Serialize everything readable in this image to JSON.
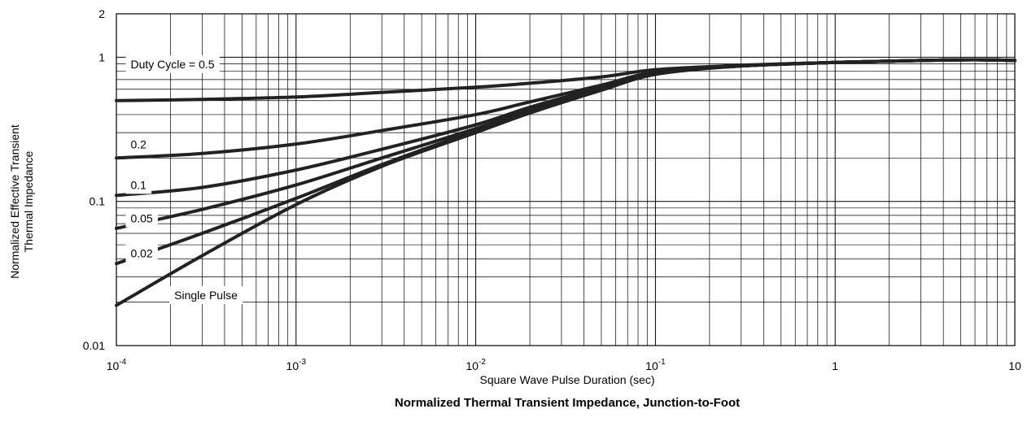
{
  "chart_data": {
    "type": "line",
    "title": "Normalized Thermal Transient Impedance, Junction-to-Foot",
    "xlabel": "Square Wave Pulse Duration (sec)",
    "ylabel_lines": [
      "Normalized Effective Transient",
      "Thermal Impedance"
    ],
    "x_scale": "log",
    "y_scale": "log",
    "xlim": [
      0.0001,
      10
    ],
    "ylim": [
      0.01,
      2
    ],
    "grid": true,
    "x_ticks": [
      {
        "value": 0.0001,
        "base": "10",
        "exp": "-4"
      },
      {
        "value": 0.001,
        "base": "10",
        "exp": "-3"
      },
      {
        "value": 0.01,
        "base": "10",
        "exp": "-2"
      },
      {
        "value": 0.1,
        "base": "10",
        "exp": "-1"
      },
      {
        "value": 1,
        "base": "1",
        "exp": ""
      },
      {
        "value": 10,
        "base": "10",
        "exp": ""
      }
    ],
    "y_ticks": [
      {
        "value": 0.01,
        "label": "0.01"
      },
      {
        "value": 0.1,
        "label": "0.1"
      },
      {
        "value": 1,
        "label": "1"
      },
      {
        "value": 2,
        "label": "2"
      }
    ],
    "series": [
      {
        "name": "Duty Cycle = 0.5",
        "x": [
          0.0001,
          0.0003,
          0.001,
          0.003,
          0.01,
          0.02,
          0.05,
          0.1,
          0.3,
          1,
          3,
          6,
          10
        ],
        "y": [
          0.5,
          0.51,
          0.53,
          0.57,
          0.62,
          0.66,
          0.73,
          0.82,
          0.88,
          0.92,
          0.95,
          0.96,
          0.95
        ]
      },
      {
        "name": "0.2",
        "x": [
          0.0001,
          0.0003,
          0.001,
          0.003,
          0.01,
          0.02,
          0.05,
          0.1,
          0.3,
          1,
          3,
          6,
          10
        ],
        "y": [
          0.2,
          0.215,
          0.25,
          0.31,
          0.4,
          0.49,
          0.64,
          0.79,
          0.87,
          0.92,
          0.95,
          0.96,
          0.95
        ]
      },
      {
        "name": "0.1",
        "x": [
          0.0001,
          0.0003,
          0.001,
          0.003,
          0.01,
          0.02,
          0.05,
          0.1,
          0.3,
          1,
          3,
          6,
          10
        ],
        "y": [
          0.11,
          0.125,
          0.165,
          0.23,
          0.34,
          0.45,
          0.62,
          0.78,
          0.87,
          0.92,
          0.95,
          0.96,
          0.95
        ]
      },
      {
        "name": "0.05",
        "x": [
          0.0001,
          0.0003,
          0.001,
          0.003,
          0.01,
          0.02,
          0.05,
          0.1,
          0.3,
          1,
          3,
          6,
          10
        ],
        "y": [
          0.065,
          0.088,
          0.13,
          0.2,
          0.32,
          0.43,
          0.61,
          0.77,
          0.87,
          0.92,
          0.95,
          0.96,
          0.95
        ]
      },
      {
        "name": "0.02",
        "x": [
          0.0001,
          0.0003,
          0.001,
          0.003,
          0.01,
          0.02,
          0.05,
          0.1,
          0.3,
          1,
          3,
          6,
          10
        ],
        "y": [
          0.037,
          0.06,
          0.105,
          0.18,
          0.31,
          0.42,
          0.6,
          0.77,
          0.87,
          0.92,
          0.95,
          0.96,
          0.95
        ]
      },
      {
        "name": "Single Pulse",
        "x": [
          0.0001,
          0.0003,
          0.001,
          0.003,
          0.01,
          0.02,
          0.05,
          0.1,
          0.3,
          1,
          3,
          6,
          10
        ],
        "y": [
          0.019,
          0.042,
          0.095,
          0.175,
          0.3,
          0.41,
          0.59,
          0.76,
          0.87,
          0.92,
          0.95,
          0.96,
          0.95
        ]
      }
    ],
    "curve_labels": [
      {
        "text": "Duty Cycle = 0.5",
        "x": 0.00012,
        "y": 0.88
      },
      {
        "text": "0.2",
        "x": 0.00012,
        "y": 0.245
      },
      {
        "text": "0.1",
        "x": 0.00012,
        "y": 0.128
      },
      {
        "text": "0.05",
        "x": 0.00012,
        "y": 0.075
      },
      {
        "text": "0.02",
        "x": 0.00012,
        "y": 0.043
      },
      {
        "text": "Single Pulse",
        "x": 0.00021,
        "y": 0.022
      }
    ]
  }
}
